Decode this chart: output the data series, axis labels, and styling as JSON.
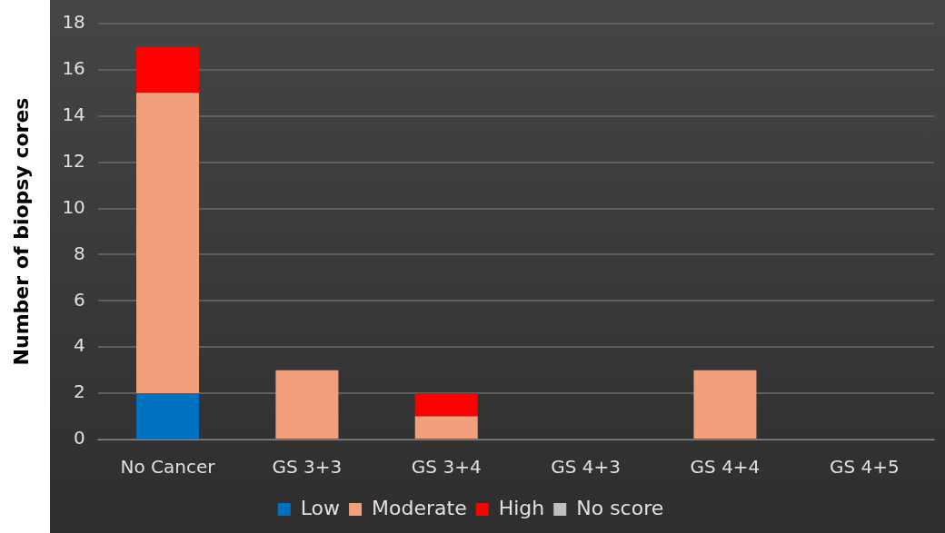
{
  "chart_data": {
    "type": "bar",
    "stacked": true,
    "ylabel": "Number of biopsy cores",
    "categories": [
      "No Cancer",
      "GS 3+3",
      "GS 3+4",
      "GS 4+3",
      "GS 4+4",
      "GS 4+5"
    ],
    "series": [
      {
        "name": "Low",
        "color": "#0070c0",
        "values": [
          2,
          0,
          0,
          0,
          0,
          0
        ]
      },
      {
        "name": "Moderate",
        "color": "#f2a07b",
        "values": [
          13,
          3,
          1,
          0,
          3,
          0
        ]
      },
      {
        "name": "High",
        "color": "#ff0000",
        "values": [
          2,
          0,
          1,
          0,
          0,
          0
        ]
      },
      {
        "name": "No score",
        "color": "#bfbfbf",
        "values": [
          0,
          0,
          0,
          0,
          0,
          0
        ]
      }
    ],
    "ylim": [
      0,
      18
    ],
    "yticks": [
      0,
      2,
      4,
      6,
      8,
      10,
      12,
      14,
      16,
      18
    ],
    "grid": "y",
    "legend": "bottom"
  }
}
